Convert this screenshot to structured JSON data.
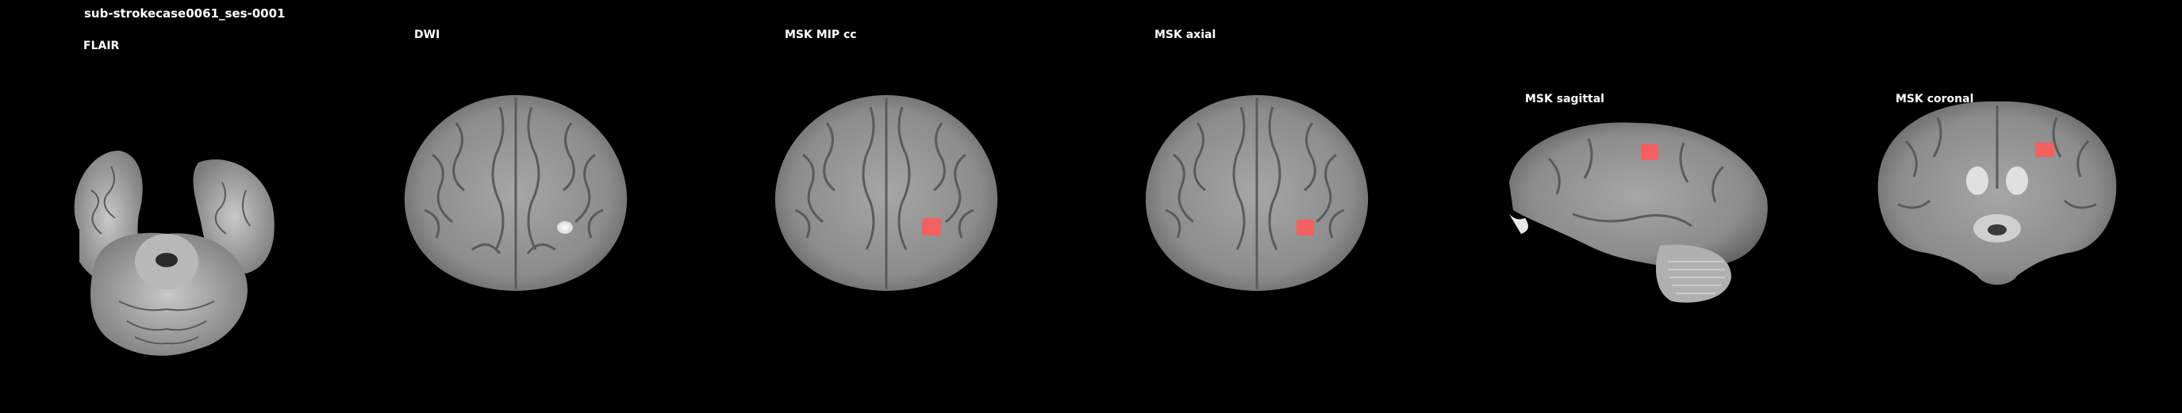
{
  "figure": {
    "title": "sub-strokecase0061_ses-0001"
  },
  "panels": [
    {
      "label": "FLAIR",
      "view": "axial-inferior",
      "has_mask": false
    },
    {
      "label": "DWI",
      "view": "axial",
      "has_mask": false
    },
    {
      "label": "MSK MIP cc",
      "view": "axial",
      "has_mask": true
    },
    {
      "label": "MSK axial",
      "view": "axial",
      "has_mask": true
    },
    {
      "label": "MSK sagittal",
      "view": "sagittal",
      "has_mask": true
    },
    {
      "label": "MSK coronal",
      "view": "coronal",
      "has_mask": true
    }
  ],
  "colors": {
    "background": "#000000",
    "mask_overlay": "#ff5a5a",
    "brain_tissue": "#8a8a8a",
    "lesion_dwi": "#f2f2f2"
  }
}
